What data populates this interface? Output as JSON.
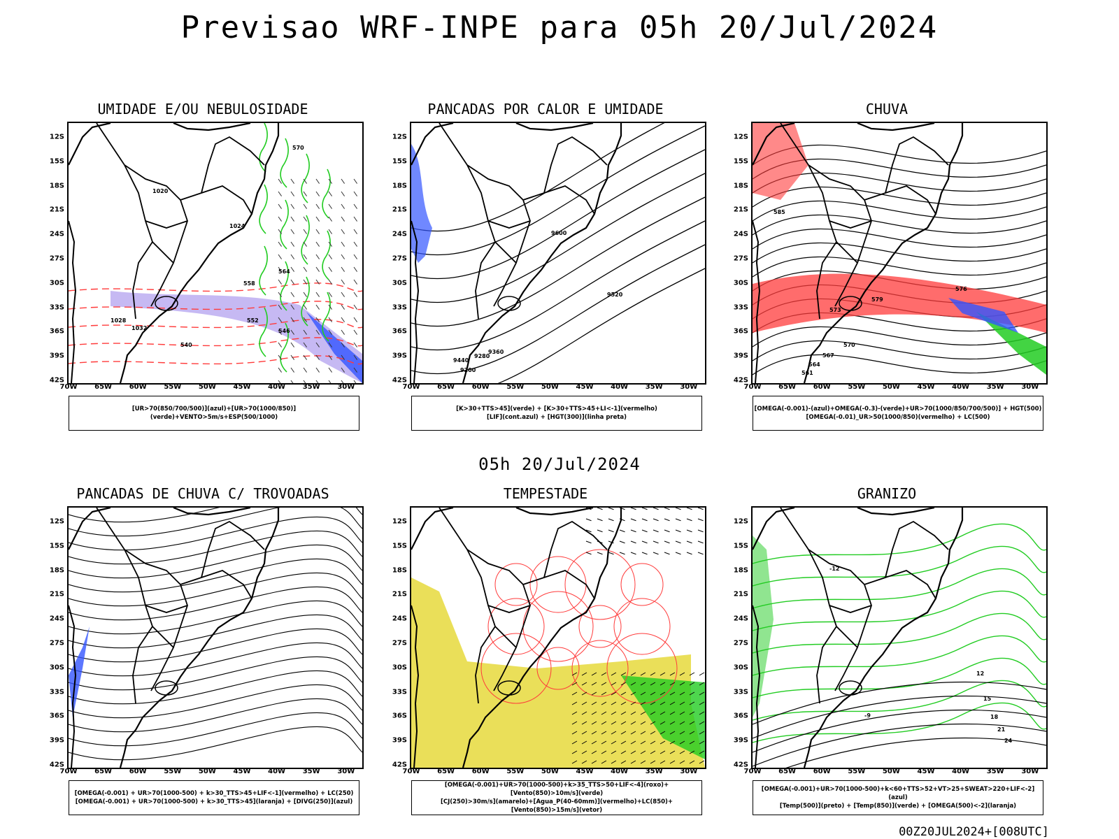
{
  "header": {
    "title": "Previsao WRF-INPE  para 05h 20/Jul/2024"
  },
  "middle_date": "05h 20/Jul/2024",
  "footer": "00Z20JUL2024+[008UTC]",
  "axes": {
    "lat_labels": [
      "12S",
      "15S",
      "18S",
      "21S",
      "24S",
      "27S",
      "30S",
      "33S",
      "36S",
      "39S",
      "42S"
    ],
    "lon_labels": [
      "70W",
      "65W",
      "60W",
      "55W",
      "50W",
      "45W",
      "40W",
      "35W",
      "30W"
    ]
  },
  "colors": {
    "red": "#ff3b3b",
    "green": "#22cc22",
    "blue": "#3355ff",
    "yellow": "#e6d93c",
    "purple": "#b8a8f0",
    "black": "#000000"
  },
  "panels": [
    {
      "id": "umidade",
      "title": "UMIDADE E/OU NEBULOSIDADE",
      "legend": [
        "[UR>70(850/700/500)](azul)+[UR>70(1000/850)](verde)+VENTO>5m/s+ESP(500/1000)"
      ],
      "contour_labels": [
        "1020",
        "1024",
        "1028",
        "1032",
        "570",
        "564",
        "558",
        "552",
        "546",
        "540"
      ]
    },
    {
      "id": "pancadas_calor",
      "title": "PANCADAS POR CALOR E UMIDADE",
      "legend": [
        "[K>30+TTS>45](verde)  +  [K>30+TTS>45+LI<-1](vermelho)",
        "[LIF](cont.azul)  +  [HGT(300)](linha preta)"
      ],
      "contour_labels": [
        "9600",
        "9520",
        "9440",
        "9360",
        "9280",
        "9200"
      ]
    },
    {
      "id": "chuva",
      "title": "CHUVA",
      "legend": [
        "[OMEGA(-0.001)-(azul)+OMEGA(-0.3)-(verde)+UR>70(1000/850/700/500)]  +  HGT(500)",
        "[OMEGA(-0.01)_UR>50(1000/850)(vermelho)  +  LC(500)"
      ],
      "contour_labels": [
        "585",
        "579",
        "576",
        "573",
        "570",
        "567",
        "564",
        "561"
      ]
    },
    {
      "id": "trovoadas",
      "title": "PANCADAS DE CHUVA C/ TROVOADAS",
      "legend": [
        "[OMEGA(-0.001)  +  UR>70(1000-500)  +  k>30_TTS>45+LIF<-1](vermelho)  +  LC(250)",
        "[OMEGA(-0.001)  +  UR>70(1000-500)  +  k>30_TTS>45](laranja)  +  [DIVG(250)](azul)"
      ],
      "contour_labels": []
    },
    {
      "id": "tempestade",
      "title": "TEMPESTADE",
      "legend": [
        "[OMEGA(-0.001)+UR>70(1000-500)+k>35_TTS>50+LIF<-4](roxo)+[Vento(850)>10m/s](verde)",
        "[CJ(250)>30m/s](amarelo)+[Agua_P(40-60mm)](vermelho)+LC(850)+[Vento(850)>15m/s](vetor)"
      ],
      "contour_labels": []
    },
    {
      "id": "granizo",
      "title": "GRANIZO",
      "legend": [
        "[OMEGA(-0.001)+UR>70(1000-500)+k<60+TTS>52+VT>25+SWEAT>220+LIF<-2](azul)",
        "[Temp(500)](preto)  +  [Temp(850)](verde)  +  [OMEGA(500)<-2](laranja)"
      ],
      "contour_labels": [
        "12",
        "15",
        "18",
        "21",
        "24",
        "-12",
        "-9"
      ]
    }
  ]
}
